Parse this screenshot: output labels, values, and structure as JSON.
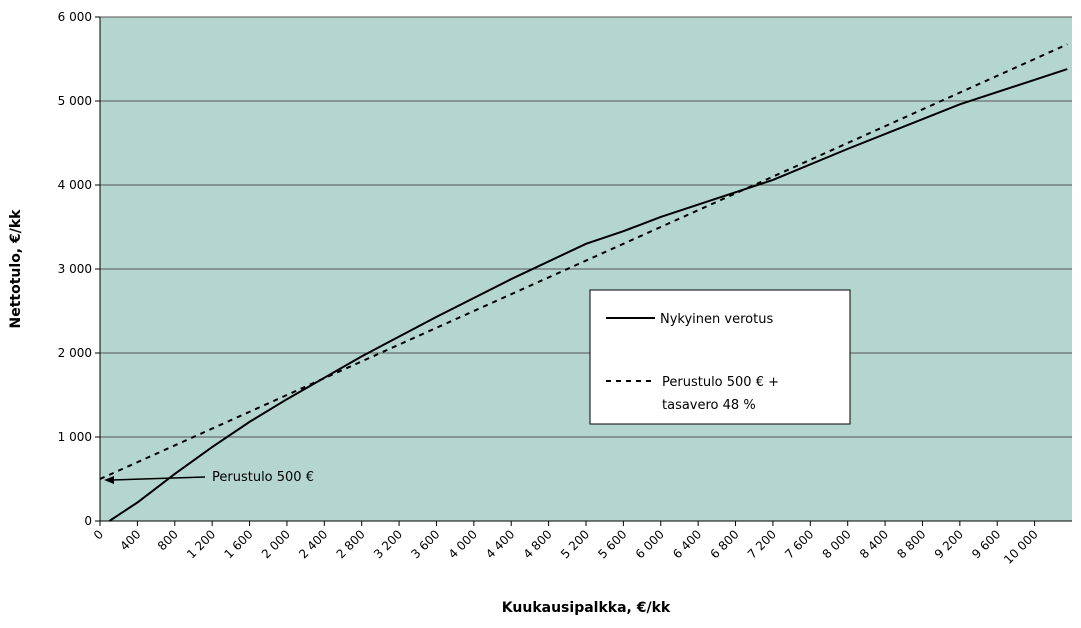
{
  "chart_data": {
    "type": "line",
    "xlabel": "Kuukausipalkka, €/kk",
    "ylabel": "Nettotulo, €/kk",
    "xlim": [
      0,
      10400
    ],
    "ylim": [
      0,
      6000
    ],
    "xticks": [
      0,
      400,
      800,
      {
        "value": 1200,
        "label": "1 200"
      },
      {
        "value": 1600,
        "label": "1 600"
      },
      {
        "value": 2000,
        "label": "2 000"
      },
      {
        "value": 2400,
        "label": "2 400"
      },
      {
        "value": 2800,
        "label": "2 800"
      },
      {
        "value": 3200,
        "label": "3 200"
      },
      {
        "value": 3600,
        "label": "3 600"
      },
      {
        "value": 4000,
        "label": "4 000"
      },
      {
        "value": 4400,
        "label": "4 400"
      },
      {
        "value": 4800,
        "label": "4 800"
      },
      {
        "value": 5200,
        "label": "5 200"
      },
      {
        "value": 5600,
        "label": "5 600"
      },
      {
        "value": 6000,
        "label": "6 000"
      },
      {
        "value": 6400,
        "label": "6 400"
      },
      {
        "value": 6800,
        "label": "6 800"
      },
      {
        "value": 7200,
        "label": "7 200"
      },
      {
        "value": 7600,
        "label": "7 600"
      },
      {
        "value": 8000,
        "label": "8 000"
      },
      {
        "value": 8400,
        "label": "8 400"
      },
      {
        "value": 8800,
        "label": "8 800"
      },
      {
        "value": 9200,
        "label": "9 200"
      },
      {
        "value": 9600,
        "label": "9 600"
      },
      {
        "value": 10000,
        "label": "10 000"
      }
    ],
    "yticks": [
      0,
      {
        "value": 1000,
        "label": "1 000"
      },
      {
        "value": 2000,
        "label": "2 000"
      },
      {
        "value": 3000,
        "label": "3 000"
      },
      {
        "value": 4000,
        "label": "4 000"
      },
      {
        "value": 5000,
        "label": "5 000"
      },
      {
        "value": 6000,
        "label": "6 000"
      }
    ],
    "grid": true,
    "background": "#b5d6cf",
    "series": [
      {
        "name": "Nykyinen verotus",
        "color": "#000000",
        "dash": false,
        "x": [
          100,
          400,
          800,
          1200,
          1600,
          2000,
          2800,
          3600,
          4400,
          5200,
          5600,
          6000,
          7200,
          8000,
          9200,
          10350
        ],
        "values": [
          0,
          220,
          560,
          880,
          1180,
          1450,
          1960,
          2430,
          2880,
          3300,
          3450,
          3620,
          4060,
          4430,
          4960,
          5380
        ]
      },
      {
        "name": "Perustulo 500 € + tasavero 48 %",
        "color": "#000000",
        "dash": true,
        "x": [
          0,
          2000,
          4000,
          6000,
          8000,
          10350
        ],
        "values": [
          500,
          1500,
          2500,
          3500,
          4500,
          5675
        ]
      }
    ],
    "legend_lines": [
      "Nykyinen verotus",
      "Perustulo 500 € +",
      "tasavero 48 %"
    ],
    "annotation": {
      "text": "Perustulo 500 €",
      "x": 0,
      "y": 500
    }
  }
}
